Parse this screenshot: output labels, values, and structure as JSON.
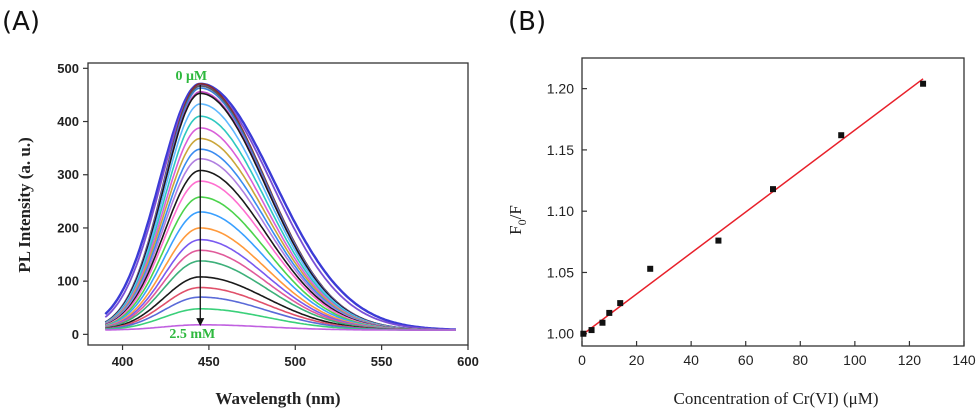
{
  "panels": {
    "a_label": "(A)",
    "b_label": "(B)"
  },
  "chart_data": [
    {
      "type": "line",
      "panel": "(A)",
      "xlabel": "Wavelength (nm)",
      "ylabel": "PL Intensity (a. u.)",
      "xlim": [
        380,
        600
      ],
      "ylim": [
        -20,
        510
      ],
      "xticks": [
        400,
        450,
        500,
        550,
        600
      ],
      "yticks": [
        0,
        100,
        200,
        300,
        400,
        500
      ],
      "peak_wavelength": 445,
      "x_range": [
        390,
        593
      ],
      "series_peaks": [
        463,
        459,
        455,
        448,
        445,
        425,
        402,
        380,
        360,
        340,
        322,
        300,
        280,
        250,
        222,
        192,
        170,
        150,
        130,
        100,
        80,
        62,
        40,
        10
      ],
      "series_colors": [
        "#8b2a2a",
        "#5a5a5a",
        "#3d7fd6",
        "#c246c2",
        "#1a1a1a",
        "#5fb8ff",
        "#2ec8c0",
        "#d95fd9",
        "#caa63a",
        "#3a8cf0",
        "#b07fe0",
        "#1a1a1a",
        "#ff6fd0",
        "#4cd34c",
        "#3aa0ff",
        "#ff9a3c",
        "#7a5af0",
        "#e05a9a",
        "#3db07a",
        "#1a1a1a",
        "#e0506a",
        "#5a6ad8",
        "#3ad07a",
        "#c060e0"
      ],
      "envelope_color": "#3b3bd6",
      "arrow": {
        "from": "0 μM",
        "to": "2.5 mM",
        "x": 445,
        "y_from": 463,
        "y_to": 8
      },
      "annotations": [
        "0 μM",
        "2.5 mM"
      ]
    },
    {
      "type": "scatter",
      "panel": "(B)",
      "xlabel": "Concentration of Cr(VI) (μM)",
      "ylabel": "F0/F",
      "xlim": [
        0,
        140
      ],
      "ylim": [
        0.99,
        1.225
      ],
      "xticks": [
        0,
        20,
        40,
        60,
        80,
        100,
        120,
        140
      ],
      "yticks": [
        1.0,
        1.05,
        1.1,
        1.15,
        1.2
      ],
      "ytick_labels": [
        "1.00",
        "1.05",
        "1.10",
        "1.15",
        "1.20"
      ],
      "points": [
        {
          "x": 0.5,
          "y": 1.0
        },
        {
          "x": 3.5,
          "y": 1.003
        },
        {
          "x": 7.5,
          "y": 1.009
        },
        {
          "x": 10,
          "y": 1.017
        },
        {
          "x": 14,
          "y": 1.025
        },
        {
          "x": 25,
          "y": 1.053
        },
        {
          "x": 50,
          "y": 1.076
        },
        {
          "x": 70,
          "y": 1.118
        },
        {
          "x": 95,
          "y": 1.162
        },
        {
          "x": 125,
          "y": 1.204
        }
      ],
      "fit_line": {
        "x": [
          0,
          125
        ],
        "y": [
          0.999,
          1.208
        ],
        "color": "#e8202a"
      },
      "marker_color": "#111111"
    }
  ]
}
